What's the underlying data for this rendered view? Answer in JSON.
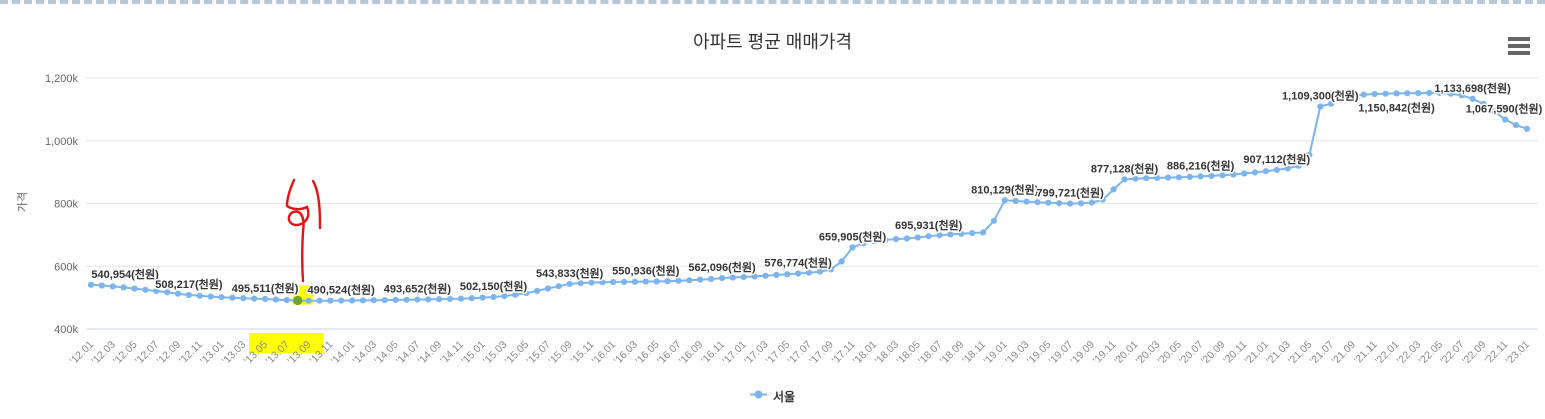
{
  "chart_data": {
    "type": "line",
    "title": "아파트 평균 매매가격",
    "ylabel": "가격",
    "xlabel": "",
    "series_name": "서울",
    "line_color": "#7cb5ec",
    "unit_suffix": "(천원)",
    "ylim": [
      400000,
      1200000
    ],
    "y_tick_values": [
      400000,
      600000,
      800000,
      1000000,
      1200000
    ],
    "y_tick_labels": [
      "400k",
      "600k",
      "800k",
      "1,000k",
      "1,200k"
    ],
    "x_tick_labels": [
      "'12.01",
      "'12.03",
      "'12.05",
      "'12.07",
      "'12.09",
      "'12.11",
      "'13.01",
      "'13.03",
      "'13.05",
      "'13.07",
      "'13.09",
      "'13.11",
      "'14.01",
      "'14.03",
      "'14.05",
      "'14.07",
      "'14.09",
      "'14.11",
      "'15.01",
      "'15.03",
      "'15.05",
      "'15.07",
      "'15.09",
      "'15.11",
      "'16.01",
      "'16.03",
      "'16.05",
      "'16.07",
      "'16.09",
      "'16.11",
      "'17.01",
      "'17.03",
      "'17.05",
      "'17.07",
      "'17.09",
      "'17.11",
      "'18.01",
      "'18.03",
      "'18.05",
      "'18.07",
      "'18.09",
      "'18.11",
      "'19.01",
      "'19.03",
      "'19.05",
      "'19.07",
      "'19.09",
      "'19.11",
      "'20.01",
      "'20.03",
      "'20.05",
      "'20.07",
      "'20.09",
      "'20.11",
      "'21.01",
      "'21.03",
      "'21.05",
      "'21.07",
      "'21.09",
      "'21.11",
      "'22.01",
      "'22.03",
      "'22.05",
      "'22.07",
      "'22.09",
      "'22.11",
      "'23.01"
    ],
    "x_range_note": "monthly points from '12.01 to '23.01, x tick labels shown every 2 months",
    "values": [
      540954,
      538500,
      535800,
      532500,
      528900,
      525000,
      521000,
      517000,
      512500,
      508217,
      505800,
      503600,
      501500,
      499800,
      498200,
      496800,
      495511,
      493800,
      492200,
      490900,
      490300,
      490100,
      490200,
      490524,
      490900,
      491300,
      491700,
      492100,
      492600,
      493100,
      493652,
      494300,
      495000,
      495800,
      496700,
      498200,
      500000,
      502150,
      505000,
      509000,
      514500,
      521500,
      529000,
      536500,
      543833,
      546200,
      547900,
      549000,
      549700,
      550100,
      550500,
      550936,
      551600,
      552500,
      553700,
      555200,
      557000,
      559300,
      562096,
      564000,
      565800,
      567700,
      569800,
      572000,
      574300,
      576774,
      579500,
      583000,
      590000,
      615000,
      659905,
      673000,
      680000,
      684000,
      686500,
      688500,
      691500,
      695931,
      699000,
      701500,
      703500,
      705500,
      708000,
      745000,
      810129,
      808000,
      806000,
      804000,
      802500,
      801000,
      799721,
      800500,
      803000,
      812000,
      845000,
      877128,
      879000,
      880500,
      881500,
      882500,
      883500,
      884800,
      886216,
      888000,
      890000,
      892500,
      895500,
      899000,
      903000,
      907112,
      912000,
      920000,
      955000,
      1109300,
      1118000,
      1133000,
      1143000,
      1147000,
      1149000,
      1150000,
      1150842,
      1151500,
      1152000,
      1152500,
      1152000,
      1150000,
      1145000,
      1133698,
      1117000,
      1094000,
      1067590,
      1050000,
      1038000
    ],
    "data_labels": [
      {
        "index": 0,
        "text": "540,954(천원)"
      },
      {
        "index": 9,
        "text": "508,217(천원)"
      },
      {
        "index": 16,
        "text": "495,511(천원)"
      },
      {
        "index": 23,
        "text": "490,524(천원)"
      },
      {
        "index": 30,
        "text": "493,652(천원)"
      },
      {
        "index": 37,
        "text": "502,150(천원)"
      },
      {
        "index": 44,
        "text": "543,833(천원)"
      },
      {
        "index": 51,
        "text": "550,936(천원)"
      },
      {
        "index": 58,
        "text": "562,096(천원)"
      },
      {
        "index": 65,
        "text": "576,774(천원)"
      },
      {
        "index": 70,
        "text": "659,905(천원)"
      },
      {
        "index": 77,
        "text": "695,931(천원)"
      },
      {
        "index": 84,
        "text": "810,129(천원)"
      },
      {
        "index": 90,
        "text": "799,721(천원)"
      },
      {
        "index": 95,
        "text": "877,128(천원)"
      },
      {
        "index": 102,
        "text": "886,216(천원)"
      },
      {
        "index": 109,
        "text": "907,112(천원)"
      },
      {
        "index": 113,
        "text": "1,109,300(천원)"
      },
      {
        "index": 120,
        "text": "1,150,842(천원)",
        "pos": "below"
      },
      {
        "index": 127,
        "text": "1,133,698(천원)"
      },
      {
        "index": 130,
        "text": "1,067,590(천원)"
      }
    ],
    "legend_position": "bottom-center",
    "grid": "horizontal-only"
  },
  "annotations": {
    "highlighted_point": {
      "index": 19,
      "point_color": "#6ea531",
      "highlight_color": "#ffff00"
    },
    "highlighted_x_axis_labels": [
      "'13.07",
      "'13.09"
    ],
    "axis_highlight_color": "#ffff00",
    "red_pen_scribble": "hand-drawn red pen mark above the lowest point of the curve",
    "red_pen_color": "#e51313"
  }
}
